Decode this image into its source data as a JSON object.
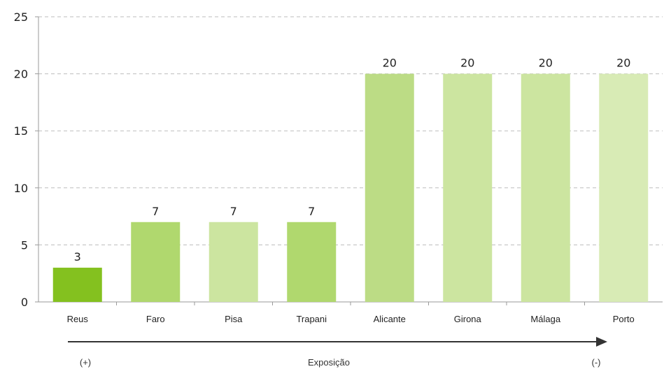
{
  "chart_data": {
    "type": "bar",
    "categories": [
      "Reus",
      "Faro",
      "Pisa",
      "Trapani",
      "Alicante",
      "Girona",
      "Málaga",
      "Porto"
    ],
    "values": [
      3,
      7,
      7,
      7,
      20,
      20,
      20,
      20
    ],
    "bar_colors": [
      "#84c11f",
      "#b0d86e",
      "#cce5a0",
      "#b0d86e",
      "#bcdc85",
      "#cce5a0",
      "#cce5a0",
      "#d8ebb5"
    ],
    "ylim": [
      0,
      25
    ],
    "yticks": [
      0,
      5,
      10,
      15,
      20,
      25
    ],
    "grid": true,
    "grid_style": "dashed",
    "data_labels": true,
    "title": "",
    "xlabel": "",
    "ylabel": ""
  },
  "annotation": {
    "left_label": "(+)",
    "center_label": "Exposição",
    "right_label": "(-)",
    "arrow_color": "#333333"
  }
}
